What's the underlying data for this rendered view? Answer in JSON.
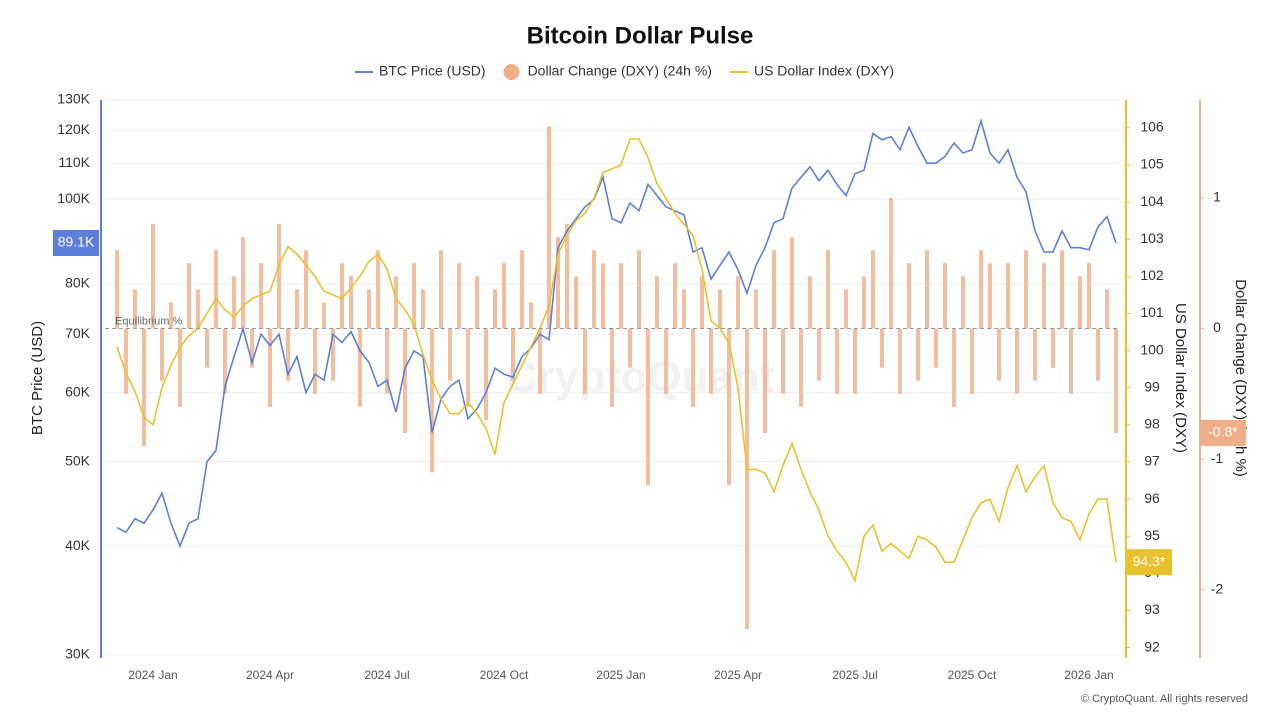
{
  "chart_data": {
    "type": "line",
    "title": "Bitcoin Dollar Pulse",
    "y_label": "BTC Price (USD)",
    "y2_label": "US Dollar Index (DXY)",
    "y3_label": "Dollar Change (DXY) (24h %)",
    "annotation": "Equilibrium %",
    "watermark": "CryptoQuant",
    "footer": "© CryptoQuant. All rights reserved",
    "grid": true,
    "y_log": true,
    "categories": [
      null,
      null,
      null,
      null,
      "2024 Jan",
      null,
      null,
      null,
      null,
      null,
      null,
      null,
      null,
      null,
      null,
      null,
      null,
      "2024 Apr",
      null,
      null,
      null,
      null,
      null,
      null,
      null,
      null,
      null,
      null,
      null,
      null,
      "2024 Jul",
      null,
      null,
      null,
      null,
      null,
      null,
      null,
      null,
      null,
      null,
      null,
      null,
      "2024 Oct",
      null,
      null,
      null,
      null,
      null,
      null,
      null,
      null,
      null,
      null,
      null,
      null,
      "2025 Jan",
      null,
      null,
      null,
      null,
      null,
      null,
      null,
      null,
      null,
      null,
      null,
      null,
      "2025 Apr",
      null,
      null,
      null,
      null,
      null,
      null,
      null,
      null,
      null,
      null,
      null,
      null,
      "2025 Jul",
      null,
      null,
      null,
      null,
      null,
      null,
      null,
      null,
      null,
      null,
      null,
      null,
      "2025 Oct",
      null,
      null,
      null,
      null,
      null,
      null,
      null,
      null,
      null,
      null,
      null,
      null,
      "2026 Jan",
      null,
      null,
      null
    ],
    "ylim": [
      30000,
      130000
    ],
    "yticks": [
      {
        "value": 30000,
        "label": "30K"
      },
      {
        "value": 40000,
        "label": "40K"
      },
      {
        "value": 50000,
        "label": "50K"
      },
      {
        "value": 60000,
        "label": "60K"
      },
      {
        "value": 70000,
        "label": "70K"
      },
      {
        "value": 80000,
        "label": "80K"
      },
      {
        "value": 100000,
        "label": "100K"
      },
      {
        "value": 110000,
        "label": "110K"
      },
      {
        "value": 120000,
        "label": "120K"
      },
      {
        "value": 130000,
        "label": "130K"
      }
    ],
    "y2lim": [
      91.8,
      106.75
    ],
    "y2ticks": [
      92,
      93,
      94,
      95,
      96,
      97,
      98,
      99,
      100,
      101,
      102,
      103,
      104,
      105,
      106
    ],
    "y3lim": [
      -2.5,
      1.75
    ],
    "y3ticks": [
      1,
      0,
      -1,
      -2
    ],
    "series": [
      {
        "name": "BTC Price (USD)",
        "type": "line",
        "color": "#5b7fdb",
        "last_label": "89.1K",
        "values": [
          42000,
          41500,
          43000,
          42500,
          44000,
          46000,
          42500,
          40000,
          42500,
          43000,
          50000,
          51500,
          61000,
          66000,
          71000,
          65000,
          70000,
          68000,
          70000,
          63000,
          66000,
          60000,
          63000,
          62000,
          70000,
          68500,
          70500,
          67000,
          65000,
          61000,
          62000,
          57000,
          64000,
          67000,
          66000,
          54000,
          59000,
          61000,
          62000,
          56000,
          57500,
          60000,
          64000,
          63000,
          62500,
          66000,
          67500,
          70000,
          69000,
          88000,
          92000,
          95000,
          98000,
          100000,
          106000,
          95000,
          94000,
          99000,
          97000,
          104000,
          101000,
          98000,
          97000,
          96000,
          87000,
          88000,
          81000,
          84000,
          87000,
          83000,
          78000,
          84000,
          88000,
          94000,
          95000,
          103000,
          106000,
          109000,
          105000,
          108000,
          104000,
          101000,
          107000,
          108000,
          119000,
          117000,
          118000,
          114000,
          121000,
          115000,
          110000,
          110000,
          112000,
          116000,
          113000,
          114000,
          123000,
          113000,
          110000,
          114000,
          106000,
          102000,
          92000,
          87000,
          87000,
          92000,
          88000,
          88000,
          87500,
          93000,
          95500,
          89100
        ]
      },
      {
        "name": "Dollar Change (DXY) (24h %)",
        "type": "bar",
        "axis": "y3",
        "color": "#f0ae88",
        "last_label": "-0.8*",
        "values": [
          0.6,
          -0.5,
          0.3,
          -0.9,
          0.8,
          -0.4,
          0.2,
          -0.6,
          0.5,
          0.3,
          -0.3,
          0.6,
          -0.5,
          0.4,
          0.7,
          -0.3,
          0.5,
          -0.6,
          0.8,
          -0.4,
          0.3,
          0.6,
          -0.5,
          0.2,
          -0.4,
          0.5,
          0.4,
          -0.6,
          0.3,
          0.6,
          -0.5,
          0.4,
          -0.8,
          0.5,
          0.3,
          -1.1,
          0.6,
          -0.4,
          0.5,
          -0.6,
          0.4,
          -0.7,
          0.3,
          0.5,
          -0.4,
          0.6,
          0.2,
          -0.5,
          1.55,
          0.7,
          0.8,
          0.4,
          -0.5,
          0.6,
          0.5,
          -0.6,
          0.5,
          -0.3,
          0.6,
          -1.2,
          0.4,
          -0.5,
          0.5,
          0.3,
          -0.6,
          0.4,
          -0.5,
          0.3,
          -1.2,
          0.4,
          -2.3,
          0.3,
          -0.8,
          0.6,
          -0.5,
          0.7,
          -0.6,
          0.4,
          -0.4,
          0.6,
          -0.5,
          0.3,
          -0.5,
          0.4,
          0.6,
          -0.3,
          1.0,
          -0.5,
          0.5,
          -0.4,
          0.6,
          -0.3,
          0.5,
          -0.6,
          0.4,
          -0.5,
          0.6,
          0.5,
          -0.4,
          0.5,
          -0.5,
          0.6,
          -0.4,
          0.5,
          -0.3,
          0.6,
          -0.5,
          0.4,
          0.5,
          -0.4,
          0.3,
          -0.8
        ]
      },
      {
        "name": "US Dollar Index (DXY)",
        "type": "line",
        "axis": "y2",
        "color": "#e8c12c",
        "last_label": "94.3*",
        "values": [
          100.1,
          99.4,
          98.9,
          98.2,
          98.0,
          99.0,
          99.6,
          100.1,
          100.4,
          100.6,
          101.0,
          101.4,
          101.1,
          100.9,
          101.2,
          101.4,
          101.5,
          101.6,
          102.3,
          102.8,
          102.6,
          102.3,
          102.0,
          101.6,
          101.5,
          101.4,
          101.7,
          102.0,
          102.4,
          102.6,
          102.2,
          101.4,
          101.1,
          100.7,
          99.9,
          99.2,
          98.7,
          98.3,
          98.3,
          98.6,
          98.3,
          97.9,
          97.2,
          98.6,
          99.1,
          99.6,
          100.1,
          100.6,
          101.2,
          102.6,
          103.1,
          103.5,
          103.7,
          104.1,
          104.8,
          104.9,
          105.0,
          105.7,
          105.7,
          105.2,
          104.5,
          104.1,
          103.7,
          103.4,
          103.1,
          102.2,
          100.8,
          100.6,
          100.2,
          99.0,
          96.8,
          96.8,
          96.7,
          96.2,
          96.9,
          97.5,
          96.8,
          96.2,
          95.7,
          95.0,
          94.6,
          94.3,
          93.8,
          95.0,
          95.3,
          94.6,
          94.8,
          94.6,
          94.4,
          95.0,
          94.9,
          94.7,
          94.3,
          94.3,
          94.9,
          95.5,
          95.9,
          96.0,
          95.4,
          96.3,
          96.9,
          96.2,
          96.6,
          96.9,
          95.9,
          95.5,
          95.4,
          94.9,
          95.6,
          96.0,
          96.0,
          94.3
        ]
      }
    ]
  }
}
